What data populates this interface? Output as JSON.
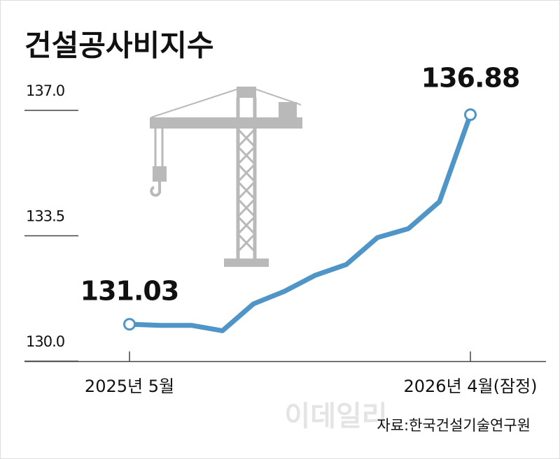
{
  "chart_data": {
    "type": "line",
    "title": "건설공사비지수",
    "categories": [
      "2025년 5월",
      null,
      null,
      null,
      null,
      null,
      null,
      null,
      null,
      null,
      null,
      "2026년 4월(잠정)"
    ],
    "series": [
      {
        "color": "#4f95c8",
        "values": [
          131.03,
          131.0,
          131.0,
          130.85,
          131.6,
          131.95,
          132.4,
          132.7,
          133.45,
          133.7,
          134.45,
          136.88
        ]
      }
    ],
    "ylim": [
      130,
      137
    ],
    "yticks": [
      {
        "value": 130,
        "label": "130.0"
      },
      133.5,
      {
        "value": 137,
        "label": "137.0"
      }
    ],
    "source": "자료:한국건설기술연구원",
    "watermark": "이데일리"
  }
}
